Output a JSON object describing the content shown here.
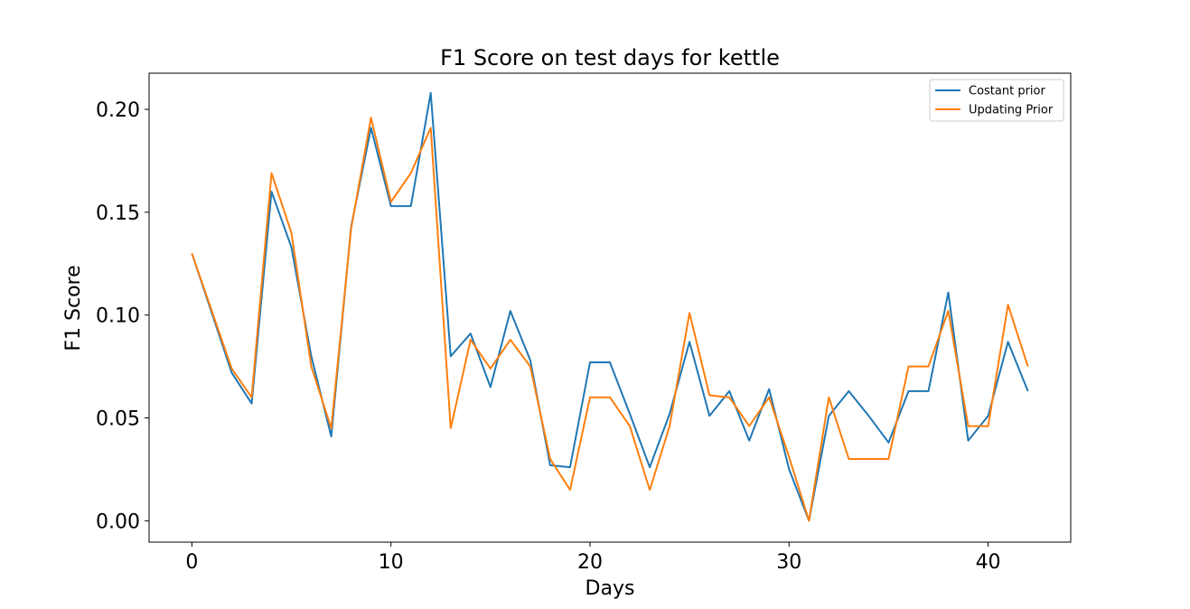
{
  "chart_data": {
    "type": "line",
    "title": "F1 Score on test days for kettle",
    "xlabel": "Days",
    "ylabel": "F1 Score",
    "xlim": [
      -2.15,
      44.15
    ],
    "ylim": [
      -0.0104,
      0.2176
    ],
    "xticks": [
      0,
      10,
      20,
      30,
      40
    ],
    "xtick_labels": [
      "0",
      "10",
      "20",
      "30",
      "40"
    ],
    "yticks": [
      0.0,
      0.05,
      0.1,
      0.15,
      0.2
    ],
    "ytick_labels": [
      "0.00",
      "0.05",
      "0.10",
      "0.15",
      "0.20"
    ],
    "grid": false,
    "legend_position": "top-right",
    "series": [
      {
        "name": "Costant prior",
        "color": "#1f77b4",
        "x": [
          0,
          2,
          3,
          4,
          5,
          6,
          7,
          8,
          9,
          10,
          11,
          12,
          13,
          14,
          15,
          16,
          17,
          18,
          19,
          20,
          21,
          22,
          23,
          24,
          25,
          26,
          27,
          28,
          29,
          30,
          31,
          32,
          33,
          34,
          35,
          36,
          37,
          38,
          39,
          40,
          41,
          42
        ],
        "values": [
          0.13,
          0.072,
          0.057,
          0.16,
          0.133,
          0.08,
          0.041,
          0.143,
          0.191,
          0.153,
          0.153,
          0.208,
          0.08,
          0.091,
          0.065,
          0.102,
          0.078,
          0.027,
          0.026,
          0.077,
          0.077,
          0.052,
          0.026,
          0.052,
          0.087,
          0.051,
          0.063,
          0.039,
          0.064,
          0.025,
          0.0,
          0.051,
          0.063,
          0.051,
          0.038,
          0.063,
          0.063,
          0.111,
          0.039,
          0.051,
          0.087,
          0.063
        ]
      },
      {
        "name": "Updating Prior",
        "color": "#ff7f0e",
        "x": [
          0,
          2,
          3,
          4,
          5,
          6,
          7,
          8,
          9,
          10,
          11,
          12,
          13,
          14,
          15,
          16,
          17,
          18,
          19,
          20,
          21,
          22,
          23,
          24,
          25,
          26,
          27,
          28,
          29,
          30,
          31,
          32,
          33,
          34,
          35,
          36,
          37,
          38,
          39,
          40,
          41,
          42
        ],
        "values": [
          0.13,
          0.074,
          0.06,
          0.169,
          0.14,
          0.075,
          0.045,
          0.142,
          0.196,
          0.155,
          0.169,
          0.191,
          0.045,
          0.088,
          0.074,
          0.088,
          0.075,
          0.03,
          0.015,
          0.06,
          0.06,
          0.046,
          0.015,
          0.046,
          0.101,
          0.061,
          0.06,
          0.046,
          0.06,
          0.031,
          0.0,
          0.06,
          0.03,
          0.03,
          0.03,
          0.075,
          0.075,
          0.102,
          0.046,
          0.046,
          0.105,
          0.075
        ]
      }
    ]
  }
}
